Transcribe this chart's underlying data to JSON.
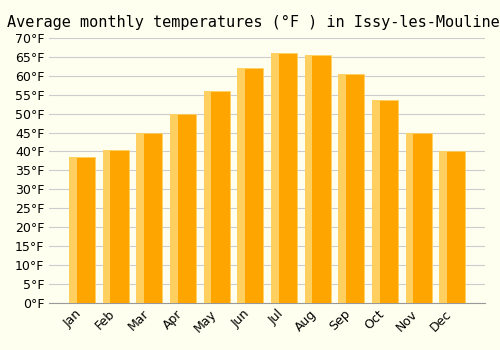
{
  "title": "Average monthly temperatures (°F ) in Issy-les-Moulineaux",
  "months": [
    "Jan",
    "Feb",
    "Mar",
    "Apr",
    "May",
    "Jun",
    "Jul",
    "Aug",
    "Sep",
    "Oct",
    "Nov",
    "Dec"
  ],
  "values": [
    38.5,
    40.5,
    45.0,
    50.0,
    56.0,
    62.0,
    66.0,
    65.5,
    60.5,
    53.5,
    45.0,
    40.0
  ],
  "bar_color_face": "#FFA500",
  "bar_color_light": "#FFD060",
  "ylim": [
    0,
    70
  ],
  "yticks": [
    0,
    5,
    10,
    15,
    20,
    25,
    30,
    35,
    40,
    45,
    50,
    55,
    60,
    65,
    70
  ],
  "background_color": "#FFFFF0",
  "grid_color": "#CCCCCC",
  "title_fontsize": 11,
  "tick_fontsize": 9
}
